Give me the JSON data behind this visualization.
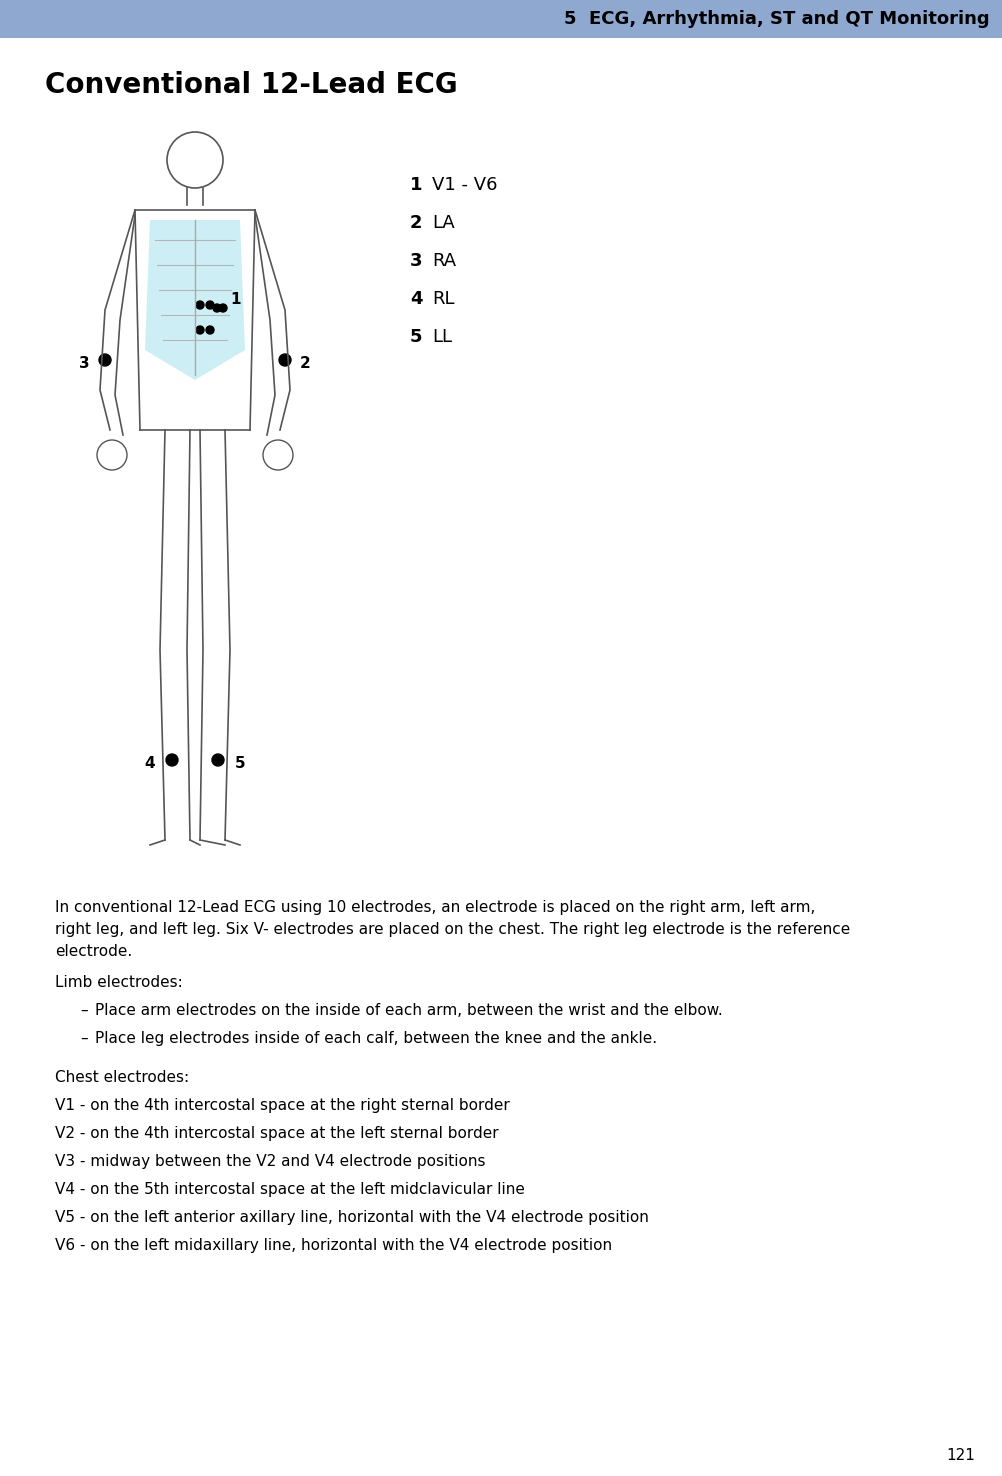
{
  "header_text": "5  ECG, Arrhythmia, ST and QT Monitoring",
  "header_bg": "#8fa8d0",
  "header_text_color": "#000000",
  "page_bg": "#ffffff",
  "title": "Conventional 12-Lead ECG",
  "title_color": "#000000",
  "legend_items": [
    {
      "num": "1",
      "text": "V1 - V6"
    },
    {
      "num": "2",
      "text": "LA"
    },
    {
      "num": "3",
      "text": "RA"
    },
    {
      "num": "4",
      "text": "RL"
    },
    {
      "num": "5",
      "text": "LL"
    }
  ],
  "body_text": "In conventional 12-Lead ECG using 10 electrodes, an electrode is placed on the right arm, left arm,\nright leg, and left leg. Six V- electrodes are placed on the chest. The right leg electrode is the reference\nelectrode.",
  "limb_header": "Limb electrodes:",
  "limb_bullets": [
    "Place arm electrodes on the inside of each arm, between the wrist and the elbow.",
    "Place leg electrodes inside of each calf, between the knee and the ankle."
  ],
  "chest_header": "Chest electrodes:",
  "chest_lines": [
    "V1 - on the 4th intercostal space at the right sternal border",
    "V2 - on the 4th intercostal space at the left sternal border",
    "V3 - midway between the V2 and V4 electrode positions",
    "V4 - on the 5th intercostal space at the left midclavicular line",
    "V5 - on the left anterior axillary line, horizontal with the V4 electrode position",
    "V6 - on the left midaxillary line, horizontal with the V4 electrode position"
  ],
  "page_number": "121",
  "footer_text_color": "#000000"
}
